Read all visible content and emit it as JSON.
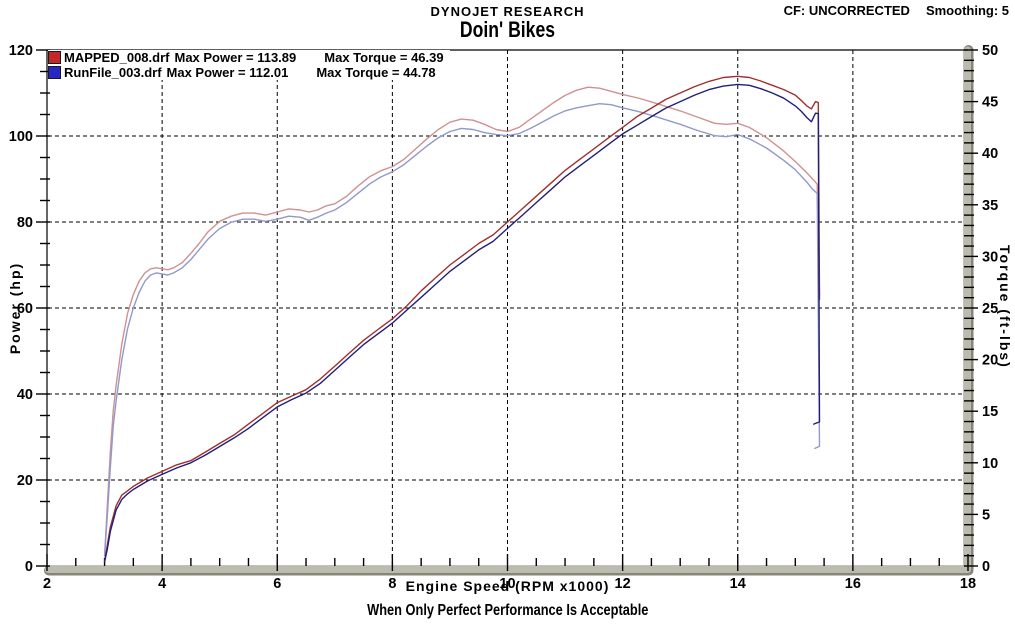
{
  "header": {
    "app_title": "DYNOJET RESEARCH",
    "cf_label": "CF: UNCORRECTED",
    "smoothing_label": "Smoothing: 5",
    "chart_title": "Doin' Bikes"
  },
  "footer": {
    "slogan": "When Only Perfect Performance Is Acceptable"
  },
  "legend": [
    {
      "file": "MAPPED_008.drf",
      "power": "Max Power = 113.89",
      "torque": "Max Torque = 46.39",
      "swatch_color": "#c42727"
    },
    {
      "file": "RunFile_003.drf",
      "power": "Max Power = 112.01",
      "torque": "Max Torque = 44.78",
      "swatch_color": "#2727c4"
    }
  ],
  "colors": {
    "power_mapped": "#a03030",
    "power_runfile": "#20207a",
    "torque_mapped": "#cf9191",
    "torque_runfile": "#9099cb",
    "axis_band_light": "#bcbcae",
    "axis_band_dark": "#85857a",
    "grid": "#000000",
    "frame": "#000000",
    "text": "#000000"
  },
  "chart_data": {
    "type": "line",
    "title": "Doin' Bikes",
    "xlabel": "Engine Speed (RPM x1000)",
    "ylabel_left": "Power (hp)",
    "ylabel_right": "Torque (ft-lbs)",
    "xlim": [
      2,
      18
    ],
    "ylim_left": [
      0,
      120
    ],
    "ylim_right": [
      0,
      50
    ],
    "xticks": [
      2,
      4,
      6,
      8,
      10,
      12,
      14,
      16,
      18
    ],
    "xtick_minor_step": 0.5,
    "yticks_left": [
      0,
      20,
      40,
      60,
      80,
      100,
      120
    ],
    "ytick_minor_step_left": 5,
    "yticks_right": [
      0,
      5,
      10,
      15,
      20,
      25,
      30,
      35,
      40,
      45,
      50
    ],
    "ytick_minor_step_right": 1,
    "grid": "dashed black at interior major ticks, both directions",
    "legend_position": "top-left inside plot",
    "series": [
      {
        "name": "MAPPED_008.drf Torque",
        "axis": "right",
        "max_value": 46.39,
        "color_key": "torque_mapped",
        "points": [
          [
            3.0,
            1
          ],
          [
            3.05,
            6
          ],
          [
            3.1,
            11
          ],
          [
            3.15,
            15
          ],
          [
            3.2,
            17.5
          ],
          [
            3.3,
            21.5
          ],
          [
            3.4,
            24.5
          ],
          [
            3.5,
            26.3
          ],
          [
            3.6,
            27.6
          ],
          [
            3.7,
            28.4
          ],
          [
            3.8,
            28.8
          ],
          [
            3.9,
            28.9
          ],
          [
            4.0,
            28.8
          ],
          [
            4.1,
            28.7
          ],
          [
            4.2,
            28.9
          ],
          [
            4.35,
            29.4
          ],
          [
            4.5,
            30.3
          ],
          [
            4.65,
            31.3
          ],
          [
            4.8,
            32.4
          ],
          [
            5.0,
            33.4
          ],
          [
            5.2,
            33.9
          ],
          [
            5.4,
            34.2
          ],
          [
            5.6,
            34.2
          ],
          [
            5.8,
            34.0
          ],
          [
            6.0,
            34.3
          ],
          [
            6.2,
            34.6
          ],
          [
            6.4,
            34.5
          ],
          [
            6.55,
            34.3
          ],
          [
            6.7,
            34.5
          ],
          [
            6.85,
            34.9
          ],
          [
            7.0,
            35.1
          ],
          [
            7.2,
            35.8
          ],
          [
            7.4,
            36.8
          ],
          [
            7.6,
            37.7
          ],
          [
            7.8,
            38.3
          ],
          [
            8.0,
            38.7
          ],
          [
            8.2,
            39.4
          ],
          [
            8.4,
            40.4
          ],
          [
            8.6,
            41.4
          ],
          [
            8.8,
            42.3
          ],
          [
            9.0,
            43.0
          ],
          [
            9.2,
            43.3
          ],
          [
            9.4,
            43.2
          ],
          [
            9.6,
            42.8
          ],
          [
            9.8,
            42.3
          ],
          [
            10.0,
            42.1
          ],
          [
            10.2,
            42.5
          ],
          [
            10.4,
            43.3
          ],
          [
            10.6,
            44.1
          ],
          [
            10.8,
            44.9
          ],
          [
            11.0,
            45.6
          ],
          [
            11.2,
            46.1
          ],
          [
            11.4,
            46.4
          ],
          [
            11.6,
            46.3
          ],
          [
            11.8,
            46.0
          ],
          [
            12.0,
            45.7
          ],
          [
            12.3,
            45.3
          ],
          [
            12.6,
            44.8
          ],
          [
            13.0,
            44.1
          ],
          [
            13.3,
            43.5
          ],
          [
            13.6,
            42.9
          ],
          [
            13.8,
            42.8
          ],
          [
            14.0,
            42.9
          ],
          [
            14.2,
            42.5
          ],
          [
            14.5,
            41.5
          ],
          [
            14.8,
            40.2
          ],
          [
            15.0,
            39.2
          ],
          [
            15.2,
            38.1
          ],
          [
            15.3,
            37.5
          ],
          [
            15.38,
            37.0
          ],
          [
            15.42,
            26.3
          ]
        ]
      },
      {
        "name": "RunFile_003.drf Torque",
        "axis": "right",
        "max_value": 44.78,
        "color_key": "torque_runfile",
        "points": [
          [
            3.0,
            1
          ],
          [
            3.05,
            5
          ],
          [
            3.1,
            9.5
          ],
          [
            3.15,
            13.5
          ],
          [
            3.2,
            16
          ],
          [
            3.3,
            20
          ],
          [
            3.4,
            23
          ],
          [
            3.5,
            25
          ],
          [
            3.6,
            26.5
          ],
          [
            3.7,
            27.6
          ],
          [
            3.8,
            28.2
          ],
          [
            3.9,
            28.4
          ],
          [
            4.0,
            28.3
          ],
          [
            4.1,
            28.2
          ],
          [
            4.2,
            28.4
          ],
          [
            4.35,
            28.9
          ],
          [
            4.5,
            29.7
          ],
          [
            4.65,
            30.7
          ],
          [
            4.8,
            31.7
          ],
          [
            5.0,
            32.7
          ],
          [
            5.2,
            33.3
          ],
          [
            5.4,
            33.6
          ],
          [
            5.6,
            33.6
          ],
          [
            5.8,
            33.4
          ],
          [
            6.0,
            33.6
          ],
          [
            6.2,
            33.9
          ],
          [
            6.4,
            33.8
          ],
          [
            6.55,
            33.5
          ],
          [
            6.7,
            33.8
          ],
          [
            6.85,
            34.2
          ],
          [
            7.0,
            34.5
          ],
          [
            7.2,
            35.2
          ],
          [
            7.4,
            36.1
          ],
          [
            7.6,
            37.0
          ],
          [
            7.8,
            37.7
          ],
          [
            8.0,
            38.2
          ],
          [
            8.2,
            38.9
          ],
          [
            8.4,
            39.8
          ],
          [
            8.6,
            40.7
          ],
          [
            8.8,
            41.5
          ],
          [
            9.0,
            42.1
          ],
          [
            9.2,
            42.4
          ],
          [
            9.4,
            42.3
          ],
          [
            9.6,
            42.0
          ],
          [
            9.8,
            41.8
          ],
          [
            10.0,
            41.7
          ],
          [
            10.2,
            41.9
          ],
          [
            10.4,
            42.4
          ],
          [
            10.6,
            43.0
          ],
          [
            10.8,
            43.6
          ],
          [
            11.0,
            44.1
          ],
          [
            11.2,
            44.4
          ],
          [
            11.4,
            44.6
          ],
          [
            11.6,
            44.8
          ],
          [
            11.8,
            44.7
          ],
          [
            12.0,
            44.4
          ],
          [
            12.3,
            44.0
          ],
          [
            12.6,
            43.5
          ],
          [
            13.0,
            42.8
          ],
          [
            13.3,
            42.2
          ],
          [
            13.6,
            41.7
          ],
          [
            13.8,
            41.6
          ],
          [
            14.0,
            41.8
          ],
          [
            14.2,
            41.4
          ],
          [
            14.5,
            40.5
          ],
          [
            14.8,
            39.3
          ],
          [
            15.0,
            38.4
          ],
          [
            15.2,
            37.2
          ],
          [
            15.3,
            36.5
          ],
          [
            15.38,
            36.1
          ],
          [
            15.42,
            11.6
          ],
          [
            15.34,
            11.4
          ]
        ]
      },
      {
        "name": "MAPPED_008.drf Power",
        "axis": "left",
        "max_value": 113.89,
        "color_key": "power_mapped",
        "points": [
          [
            3.0,
            1
          ],
          [
            3.05,
            5
          ],
          [
            3.1,
            9
          ],
          [
            3.2,
            14
          ],
          [
            3.3,
            16.5
          ],
          [
            3.4,
            17.5
          ],
          [
            3.5,
            18.5
          ],
          [
            3.75,
            20.5
          ],
          [
            4.0,
            22
          ],
          [
            4.25,
            23.5
          ],
          [
            4.5,
            24.5
          ],
          [
            4.75,
            26.5
          ],
          [
            5.0,
            28.5
          ],
          [
            5.25,
            30.5
          ],
          [
            5.5,
            33
          ],
          [
            5.75,
            35.5
          ],
          [
            6.0,
            38
          ],
          [
            6.25,
            39.5
          ],
          [
            6.5,
            41
          ],
          [
            6.75,
            43.5
          ],
          [
            7.0,
            46.5
          ],
          [
            7.25,
            49.5
          ],
          [
            7.5,
            52.5
          ],
          [
            7.75,
            55
          ],
          [
            8.0,
            57.5
          ],
          [
            8.25,
            60.5
          ],
          [
            8.5,
            64
          ],
          [
            8.75,
            67
          ],
          [
            9.0,
            70
          ],
          [
            9.25,
            72.5
          ],
          [
            9.5,
            75
          ],
          [
            9.75,
            77
          ],
          [
            10.0,
            80
          ],
          [
            10.25,
            83
          ],
          [
            10.5,
            86
          ],
          [
            10.75,
            89
          ],
          [
            11.0,
            92
          ],
          [
            11.25,
            94.5
          ],
          [
            11.5,
            97
          ],
          [
            11.75,
            99.5
          ],
          [
            12.0,
            102
          ],
          [
            12.25,
            104.5
          ],
          [
            12.5,
            106.5
          ],
          [
            12.75,
            108.5
          ],
          [
            13.0,
            110
          ],
          [
            13.25,
            111.5
          ],
          [
            13.5,
            112.7
          ],
          [
            13.75,
            113.6
          ],
          [
            14.0,
            113.89
          ],
          [
            14.2,
            113.6
          ],
          [
            14.4,
            112.8
          ],
          [
            14.6,
            111.8
          ],
          [
            14.8,
            110.8
          ],
          [
            15.0,
            109.5
          ],
          [
            15.1,
            108.3
          ],
          [
            15.2,
            107
          ],
          [
            15.28,
            106.3
          ],
          [
            15.35,
            108
          ],
          [
            15.4,
            107.8
          ],
          [
            15.42,
            62
          ]
        ]
      },
      {
        "name": "RunFile_003.drf Power",
        "axis": "left",
        "max_value": 112.01,
        "color_key": "power_runfile",
        "points": [
          [
            3.0,
            1
          ],
          [
            3.05,
            4
          ],
          [
            3.1,
            8
          ],
          [
            3.2,
            13
          ],
          [
            3.3,
            15.5
          ],
          [
            3.4,
            16.8
          ],
          [
            3.5,
            17.8
          ],
          [
            3.75,
            19.8
          ],
          [
            4.0,
            21.3
          ],
          [
            4.25,
            22.8
          ],
          [
            4.5,
            24
          ],
          [
            4.75,
            25.8
          ],
          [
            5.0,
            27.8
          ],
          [
            5.25,
            29.8
          ],
          [
            5.5,
            32
          ],
          [
            5.75,
            34.5
          ],
          [
            6.0,
            37
          ],
          [
            6.25,
            38.7
          ],
          [
            6.5,
            40.2
          ],
          [
            6.75,
            42.5
          ],
          [
            7.0,
            45.5
          ],
          [
            7.25,
            48.5
          ],
          [
            7.5,
            51.5
          ],
          [
            7.75,
            54
          ],
          [
            8.0,
            56.5
          ],
          [
            8.25,
            59.5
          ],
          [
            8.5,
            62.5
          ],
          [
            8.75,
            65.5
          ],
          [
            9.0,
            68.5
          ],
          [
            9.25,
            71
          ],
          [
            9.5,
            73.5
          ],
          [
            9.75,
            75.5
          ],
          [
            10.0,
            78.5
          ],
          [
            10.25,
            81.5
          ],
          [
            10.5,
            84.5
          ],
          [
            10.75,
            87.5
          ],
          [
            11.0,
            90.5
          ],
          [
            11.25,
            93
          ],
          [
            11.5,
            95.5
          ],
          [
            11.75,
            98
          ],
          [
            12.0,
            100.5
          ],
          [
            12.25,
            102.5
          ],
          [
            12.5,
            104.5
          ],
          [
            12.75,
            106.5
          ],
          [
            13.0,
            108
          ],
          [
            13.25,
            109.5
          ],
          [
            13.5,
            110.8
          ],
          [
            13.75,
            111.6
          ],
          [
            14.0,
            112.01
          ],
          [
            14.2,
            111.8
          ],
          [
            14.4,
            111
          ],
          [
            14.6,
            110
          ],
          [
            14.8,
            108.8
          ],
          [
            15.0,
            107
          ],
          [
            15.1,
            105.8
          ],
          [
            15.2,
            104.3
          ],
          [
            15.28,
            103.3
          ],
          [
            15.35,
            105.3
          ],
          [
            15.4,
            105.2
          ],
          [
            15.42,
            33.5
          ],
          [
            15.32,
            33
          ]
        ]
      }
    ]
  }
}
